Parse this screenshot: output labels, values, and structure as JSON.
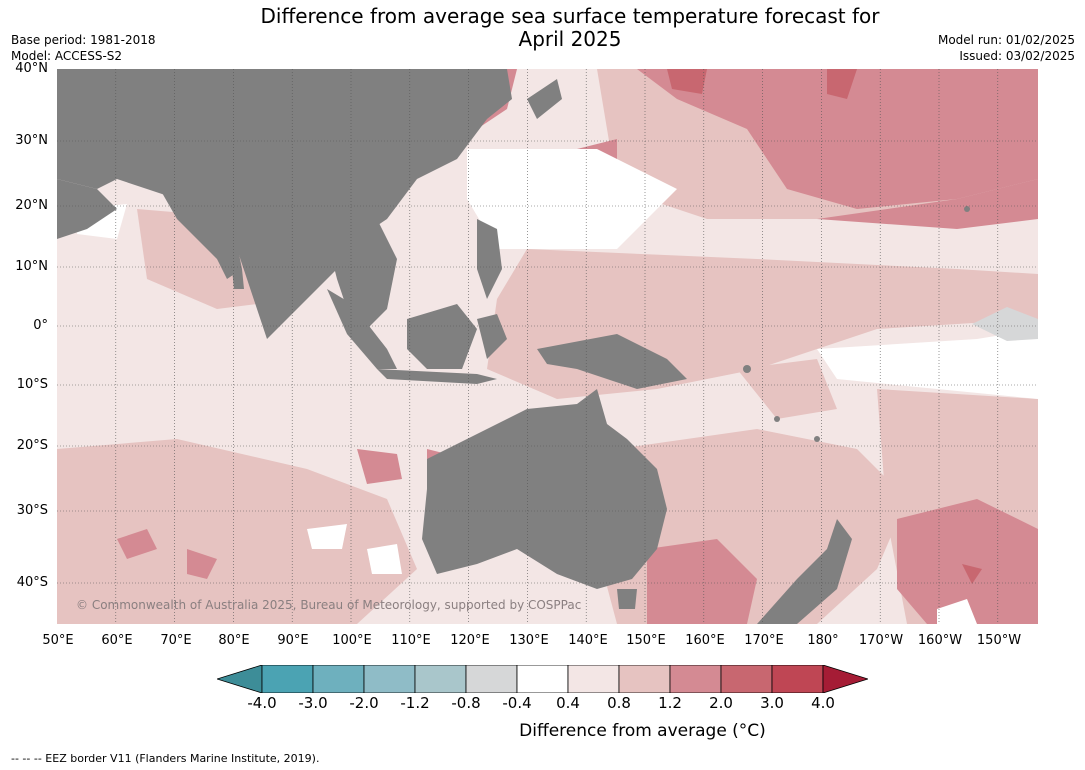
{
  "title_line1": "Difference from average sea surface temperature forecast for",
  "title_line2": "April 2025",
  "meta_left": [
    "Base period: 1981-2018",
    "Model: ACCESS-S2"
  ],
  "meta_right": [
    "Model run: 01/02/2025",
    "Issued: 03/02/2025"
  ],
  "copyright": "© Commonwealth of Australia 2025, Bureau of Meteorology, supported by COSPPac",
  "lat_labels": [
    "40°N",
    "30°N",
    "20°N",
    "10°N",
    "0°",
    "10°S",
    "20°S",
    "30°S",
    "40°S"
  ],
  "lon_labels": [
    "50°E",
    "60°E",
    "70°E",
    "80°E",
    "90°E",
    "100°E",
    "110°E",
    "120°E",
    "130°E",
    "140°E",
    "150°E",
    "160°E",
    "170°E",
    "180°",
    "170°W",
    "160°W",
    "150°W"
  ],
  "colorbar": {
    "label": "Difference from average ($^\\circ$C)",
    "label_display": "Difference from average (°C)",
    "ticks": [
      "-4.0",
      "-3.0",
      "-2.0",
      "-1.2",
      "-0.8",
      "-0.4",
      "0.4",
      "0.8",
      "1.2",
      "2.0",
      "3.0",
      "4.0"
    ],
    "colors": [
      "#3d8d98",
      "#4ba3b3",
      "#6eb0be",
      "#8fbcc7",
      "#a9c6cb",
      "#d6d7d8",
      "#ffffff",
      "#f3e6e5",
      "#e6c3c1",
      "#d48a93",
      "#c86770",
      "#bf4654",
      "#a51c35"
    ]
  },
  "legend_note": "--  --  -- EEZ border V11 (Flanders Marine Institute, 2019).",
  "colors": {
    "land": "#808080",
    "ocean_base": "#f3e6e5"
  }
}
